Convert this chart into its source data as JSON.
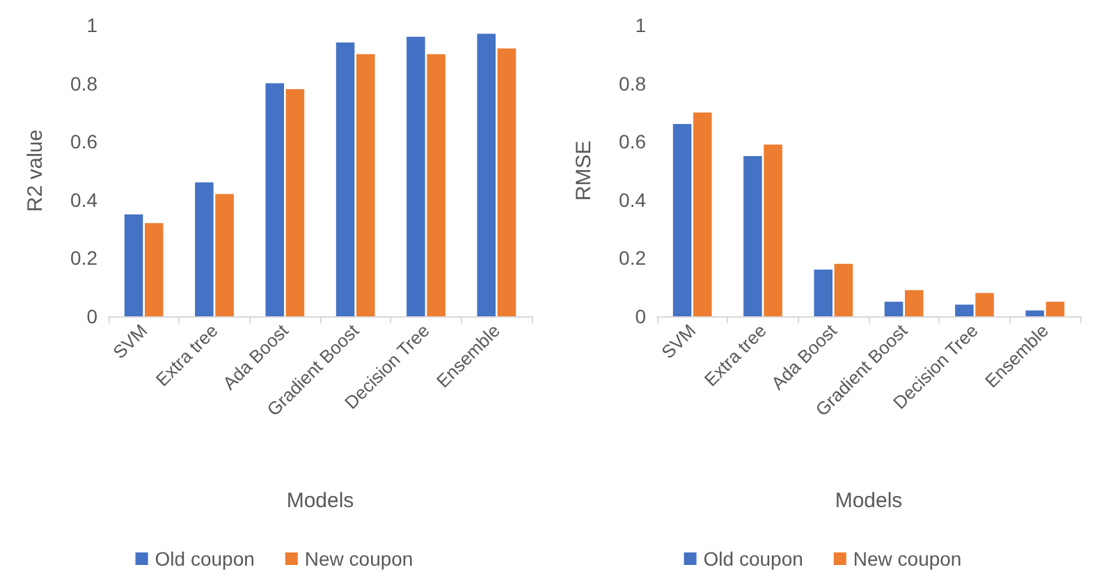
{
  "chart_data": [
    {
      "type": "bar",
      "xlabel": "Models",
      "ylabel": "R2 value",
      "categories": [
        "SVM",
        "Extra tree",
        "Ada Boost",
        "Gradient Boost",
        "Decision Tree",
        "Ensemble"
      ],
      "series": [
        {
          "name": "Old coupon",
          "color": "#4472c4",
          "values": [
            0.35,
            0.46,
            0.8,
            0.94,
            0.96,
            0.97
          ]
        },
        {
          "name": "New coupon",
          "color": "#ed7d31",
          "values": [
            0.32,
            0.42,
            0.78,
            0.9,
            0.9,
            0.92
          ]
        }
      ],
      "ylim": [
        0,
        1
      ],
      "yticks": [
        0,
        0.2,
        0.4,
        0.6,
        0.8,
        1
      ],
      "grid": false,
      "legend": "bottom"
    },
    {
      "type": "bar",
      "xlabel": "Models",
      "ylabel": "RMSE",
      "categories": [
        "SVM",
        "Extra tree",
        "Ada Boost",
        "Gradient Boost",
        "Decision Tree",
        "Ensemble"
      ],
      "series": [
        {
          "name": "Old coupon",
          "color": "#4472c4",
          "values": [
            0.66,
            0.55,
            0.16,
            0.05,
            0.04,
            0.02
          ]
        },
        {
          "name": "New coupon",
          "color": "#ed7d31",
          "values": [
            0.7,
            0.59,
            0.18,
            0.09,
            0.08,
            0.05
          ]
        }
      ],
      "ylim": [
        0,
        1
      ],
      "yticks": [
        0,
        0.2,
        0.4,
        0.6,
        0.8,
        1
      ],
      "grid": false,
      "legend": "bottom"
    }
  ]
}
